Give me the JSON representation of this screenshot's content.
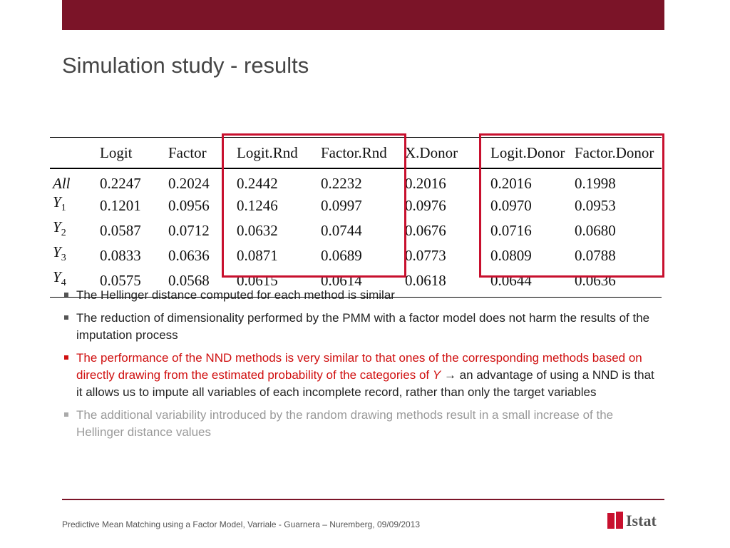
{
  "header": {
    "title": "Simulation study - results"
  },
  "table": {
    "columns": [
      "",
      "Logit",
      "Factor",
      "Logit.Rnd",
      "Factor.Rnd",
      "X.Donor",
      "Logit.Donor",
      "Factor.Donor"
    ],
    "rows": [
      {
        "label": "All",
        "sub": "",
        "values": [
          "0.2247",
          "0.2024",
          "0.2442",
          "0.2232",
          "0.2016",
          "0.2016",
          "0.1998"
        ]
      },
      {
        "label": "Y",
        "sub": "1",
        "values": [
          "0.1201",
          "0.0956",
          "0.1246",
          "0.0997",
          "0.0976",
          "0.0970",
          "0.0953"
        ]
      },
      {
        "label": "Y",
        "sub": "2",
        "values": [
          "0.0587",
          "0.0712",
          "0.0632",
          "0.0744",
          "0.0676",
          "0.0716",
          "0.0680"
        ]
      },
      {
        "label": "Y",
        "sub": "3",
        "values": [
          "0.0833",
          "0.0636",
          "0.0871",
          "0.0689",
          "0.0773",
          "0.0809",
          "0.0788"
        ]
      },
      {
        "label": "Y",
        "sub": "4",
        "values": [
          "0.0575",
          "0.0568",
          "0.0615",
          "0.0614",
          "0.0618",
          "0.0644",
          "0.0636"
        ]
      }
    ],
    "highlight_color": "#c8102e"
  },
  "bullets": [
    {
      "style": "normal",
      "text": "The Hellinger distance computed for each method is similar"
    },
    {
      "style": "normal",
      "text": "The reduction of dimensionality performed by the PMM with a factor model does not harm the results of the imputation process"
    },
    {
      "style": "red",
      "text": "The performance of the NND methods is very similar to that ones of the corresponding methods based on directly drawing from the estimated probability of the categories of ",
      "var": "Y",
      "arrow": "→",
      "tail": "an advantage of using a NND is that it allows us to impute all variables of each incomplete record, rather than only the target variables"
    },
    {
      "style": "grey",
      "text": "The additional variability introduced by the random drawing methods result in a small increase of the Hellinger distance values"
    }
  ],
  "footer": {
    "text": "Predictive Mean Matching using a Factor Model, Varriale - Guarnera – Nuremberg, 09/09/2013",
    "logo_text": "Istat"
  },
  "colors": {
    "brand": "#7b1428",
    "accent": "#c8102e"
  }
}
